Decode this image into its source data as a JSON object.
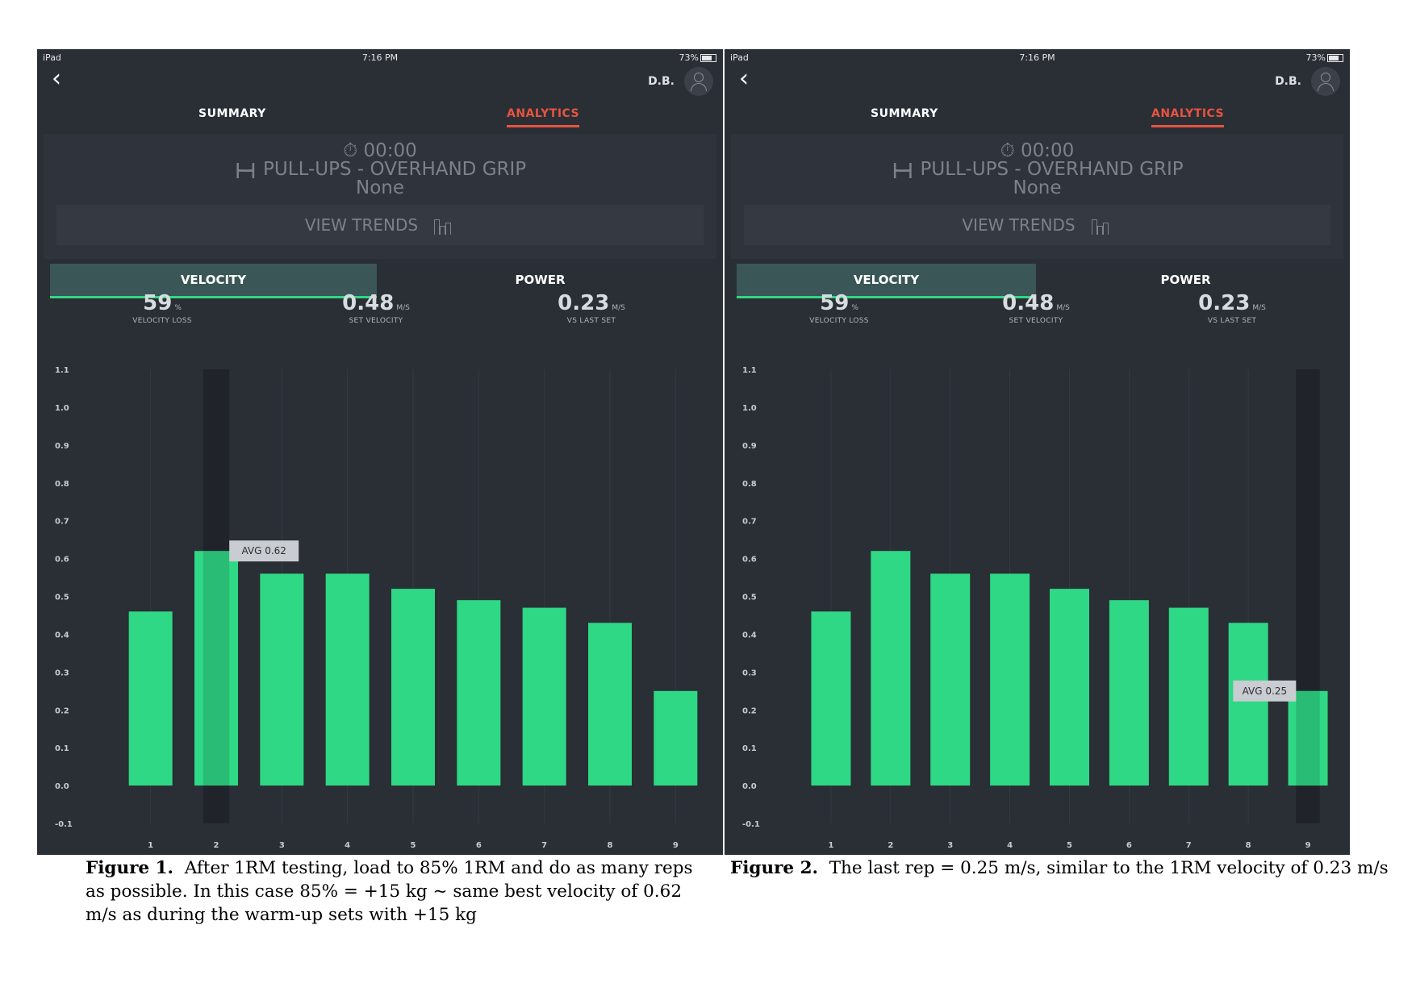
{
  "screens": [
    {
      "status": {
        "left": "iPad",
        "time": "7:16 PM",
        "battery": "73%"
      },
      "user": "D.B.",
      "tabs": {
        "summary": "SUMMARY",
        "analytics": "ANALYTICS"
      },
      "workout": {
        "time": "00:00",
        "exercise": "PULL-UPS - OVERHAND GRIP",
        "load": "None"
      },
      "view_trends": "VIEW TRENDS",
      "toggle": {
        "velocity": "VELOCITY",
        "power": "POWER"
      },
      "stats": [
        {
          "value": "59",
          "unit": "%",
          "label": "VELOCITY LOSS"
        },
        {
          "value": "0.48",
          "unit": "M/S",
          "label": "SET VELOCITY"
        },
        {
          "value": "0.23",
          "unit": "M/S",
          "label": "VS LAST SET"
        }
      ],
      "chart_data": {
        "type": "bar",
        "categories": [
          "1",
          "2",
          "3",
          "4",
          "5",
          "6",
          "7",
          "8",
          "9"
        ],
        "values": [
          0.46,
          0.62,
          0.56,
          0.56,
          0.52,
          0.49,
          0.47,
          0.43,
          0.25
        ],
        "ylim": [
          -0.1,
          1.1
        ],
        "yticks": [
          "1.1",
          "1.0",
          "0.9",
          "0.8",
          "0.7",
          "0.6",
          "0.5",
          "0.4",
          "0.3",
          "0.2",
          "0.1",
          "0.0",
          "-0.1"
        ],
        "highlight_index": 1,
        "tooltip": "AVG 0.62",
        "bar_color": "#2fd885"
      }
    },
    {
      "status": {
        "left": "iPad",
        "time": "7:16 PM",
        "battery": "73%"
      },
      "user": "D.B.",
      "tabs": {
        "summary": "SUMMARY",
        "analytics": "ANALYTICS"
      },
      "workout": {
        "time": "00:00",
        "exercise": "PULL-UPS - OVERHAND GRIP",
        "load": "None"
      },
      "view_trends": "VIEW TRENDS",
      "toggle": {
        "velocity": "VELOCITY",
        "power": "POWER"
      },
      "stats": [
        {
          "value": "59",
          "unit": "%",
          "label": "VELOCITY LOSS"
        },
        {
          "value": "0.48",
          "unit": "M/S",
          "label": "SET VELOCITY"
        },
        {
          "value": "0.23",
          "unit": "M/S",
          "label": "VS LAST SET"
        }
      ],
      "chart_data": {
        "type": "bar",
        "categories": [
          "1",
          "2",
          "3",
          "4",
          "5",
          "6",
          "7",
          "8",
          "9"
        ],
        "values": [
          0.46,
          0.62,
          0.56,
          0.56,
          0.52,
          0.49,
          0.47,
          0.43,
          0.25
        ],
        "ylim": [
          -0.1,
          1.1
        ],
        "yticks": [
          "1.1",
          "1.0",
          "0.9",
          "0.8",
          "0.7",
          "0.6",
          "0.5",
          "0.4",
          "0.3",
          "0.2",
          "0.1",
          "0.0",
          "-0.1"
        ],
        "highlight_index": 8,
        "tooltip": "AVG 0.25",
        "bar_color": "#2fd885"
      }
    }
  ],
  "captions": [
    {
      "label": "Figure 1.",
      "text": "After 1RM testing, load to 85% 1RM and do as many reps as possible.  In this case 85% = +15 kg ~ same best velocity of 0.62 m/s as during the warm-up sets with +15 kg"
    },
    {
      "label": "Figure 2.",
      "text": "The last rep = 0.25 m/s, similar to the 1RM velocity of 0.23 m/s"
    }
  ]
}
